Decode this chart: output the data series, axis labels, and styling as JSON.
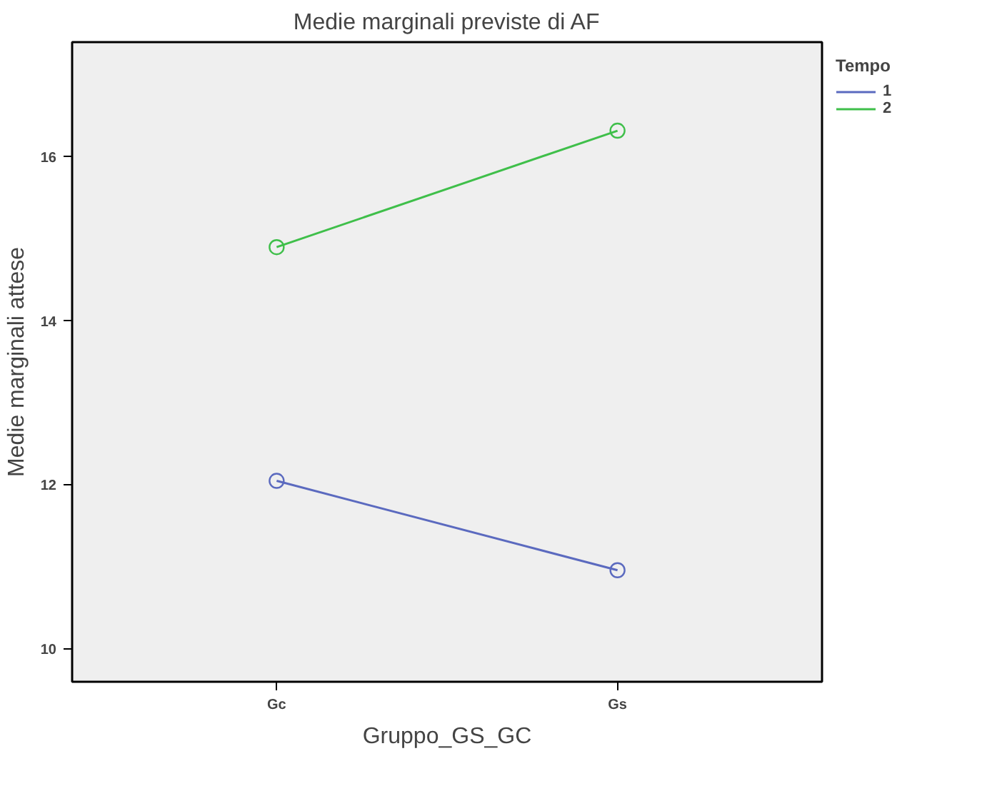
{
  "chart_data": {
    "type": "line",
    "title": "Medie marginali previste di AF",
    "xlabel": "Gruppo_GS_GC",
    "ylabel": "Medie marginali attese",
    "legend_title": "Tempo",
    "categories": [
      "Gc",
      "Gs"
    ],
    "series": [
      {
        "name": "1",
        "color": "#5b6abf",
        "values": [
          12.05,
          10.96
        ]
      },
      {
        "name": "2",
        "color": "#3fbf4a",
        "values": [
          14.9,
          16.32
        ]
      }
    ],
    "ylim": [
      9.6,
      17.4
    ],
    "yticks": [
      10,
      12,
      14,
      16
    ],
    "grid": false,
    "legend": "top right",
    "marker": "circle",
    "line_style": "solid"
  }
}
